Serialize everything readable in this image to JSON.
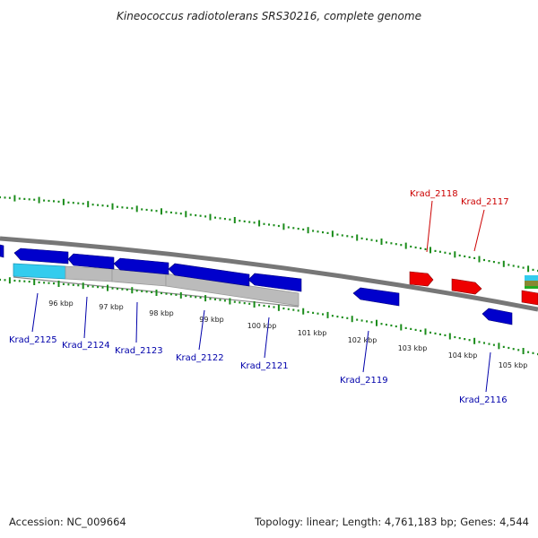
{
  "title": "Kineococcus radiotolerans SRS30216, complete genome",
  "footer": {
    "accession": "Accession: NC_009664",
    "summary": "Topology: linear; Length: 4,761,183 bp; Genes: 4,544"
  },
  "colors": {
    "backbone": "#777777",
    "tick": "#1a8c1a",
    "forward_gene": "#cc0000",
    "reverse_gene": "#0000cc",
    "forward_label": "#cc0000",
    "reverse_label": "#0000aa",
    "cyan_feature": "#33ccee",
    "gray_feature": "#bbbbbb"
  },
  "scale": {
    "unit": "kbp",
    "tick_labels": [
      "96 kbp",
      "97 kbp",
      "98 kbp",
      "99 kbp",
      "100 kbp",
      "101 kbp",
      "102 kbp",
      "103 kbp",
      "104 kbp",
      "105 kbp"
    ]
  },
  "genes": [
    {
      "id": "Krad_2125",
      "strand": "reverse"
    },
    {
      "id": "Krad_2124",
      "strand": "reverse"
    },
    {
      "id": "Krad_2123",
      "strand": "reverse"
    },
    {
      "id": "Krad_2122",
      "strand": "reverse"
    },
    {
      "id": "Krad_2121",
      "strand": "reverse"
    },
    {
      "id": "Krad_2119",
      "strand": "reverse"
    },
    {
      "id": "Krad_2118",
      "strand": "forward"
    },
    {
      "id": "Krad_2117",
      "strand": "forward"
    },
    {
      "id": "Krad_2116",
      "strand": "reverse"
    }
  ]
}
